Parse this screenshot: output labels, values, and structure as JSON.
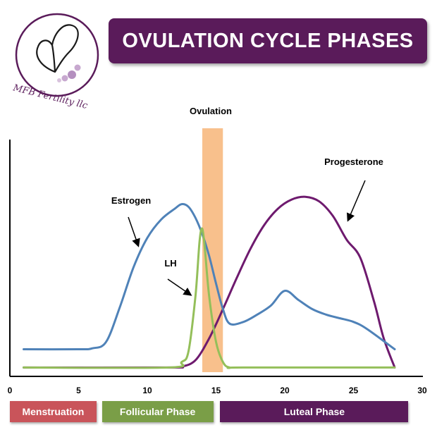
{
  "brand": {
    "logo_text": "MFB Fertility llc",
    "logo_color": "#5a1b5a"
  },
  "title": "OVULATION CYCLE PHASES",
  "colors": {
    "title_bg": "#5a1b5a",
    "estrogen": "#4f82b8",
    "lh": "#94bf5a",
    "progesterone": "#6e1a6e",
    "ovulation_band": "#f8c08c",
    "menstruation": "#c9545a",
    "follicular": "#7a9e47",
    "luteal": "#5a1b5a"
  },
  "chart_data": {
    "type": "line",
    "x_ticks": [
      "0",
      "5",
      "10",
      "15",
      "20",
      "25",
      "30"
    ],
    "xlim": [
      0,
      30
    ],
    "ylim": [
      0,
      100
    ],
    "ovulation_band": {
      "label": "Ovulation",
      "x_start": 14,
      "x_end": 15.5
    },
    "series": [
      {
        "name": "Estrogen",
        "x": [
          1,
          5,
          6,
          7,
          8,
          9,
          10,
          11,
          12,
          12.5,
          13,
          13.5,
          14,
          14.5,
          15,
          15.5,
          16,
          17,
          18,
          19,
          20,
          21,
          22,
          23,
          24,
          25,
          26,
          28
        ],
        "y": [
          11,
          11,
          11.5,
          15,
          34,
          56,
          72,
          82,
          88,
          90.5,
          89,
          83,
          74,
          62,
          47,
          33,
          25,
          26,
          30,
          35,
          43,
          38,
          33,
          30,
          28,
          26,
          22,
          11
        ]
      },
      {
        "name": "LH",
        "x": [
          1,
          11.5,
          12.5,
          13,
          13.5,
          13.8,
          14,
          14.2,
          14.5,
          15,
          15.5,
          16,
          17,
          28
        ],
        "y": [
          1,
          1,
          4,
          10,
          40,
          70,
          77,
          65,
          40,
          15,
          4,
          1,
          1,
          1
        ]
      },
      {
        "name": "Progesterone",
        "x": [
          1,
          11.5,
          12.5,
          13.5,
          14.5,
          15.5,
          16.5,
          17.5,
          18.5,
          19.5,
          20.5,
          21.5,
          22.5,
          23.5,
          24.5,
          25.5,
          26.5,
          27.2,
          28
        ],
        "y": [
          1,
          1,
          1.5,
          5,
          17,
          33,
          50,
          66,
          79,
          88,
          93,
          94.5,
          92,
          84,
          71,
          61,
          37,
          17,
          1
        ]
      }
    ],
    "annotations": [
      "Estrogen",
      "LH",
      "Progesterone"
    ]
  },
  "phases": [
    {
      "label": "Menstruation",
      "x_start": 0,
      "x_end": 6.3
    },
    {
      "label": "Follicular Phase",
      "x_start": 6.7,
      "x_end": 14.8
    },
    {
      "label": "Luteal Phase",
      "x_start": 15.3,
      "x_end": 29
    }
  ]
}
